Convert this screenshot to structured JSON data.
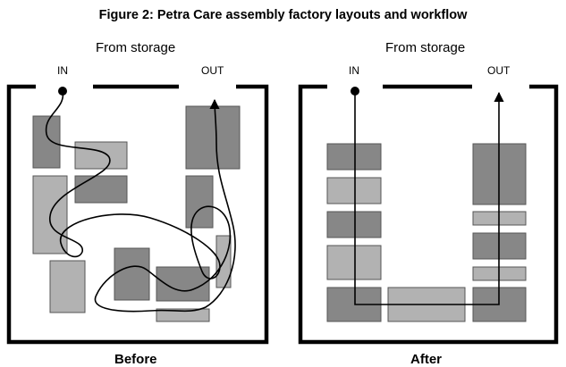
{
  "figure": {
    "title": "Figure 2: Petra Care assembly factory layouts and workflow"
  },
  "panels": {
    "before": {
      "storage_label": "From storage",
      "in_label": "IN",
      "out_label": "OUT",
      "caption": "Before"
    },
    "after": {
      "storage_label": "From storage",
      "in_label": "IN",
      "out_label": "OUT",
      "caption": "After"
    }
  },
  "colors": {
    "dark_block": "#878787",
    "light_block": "#b2b2b2",
    "wall": "#000000"
  }
}
